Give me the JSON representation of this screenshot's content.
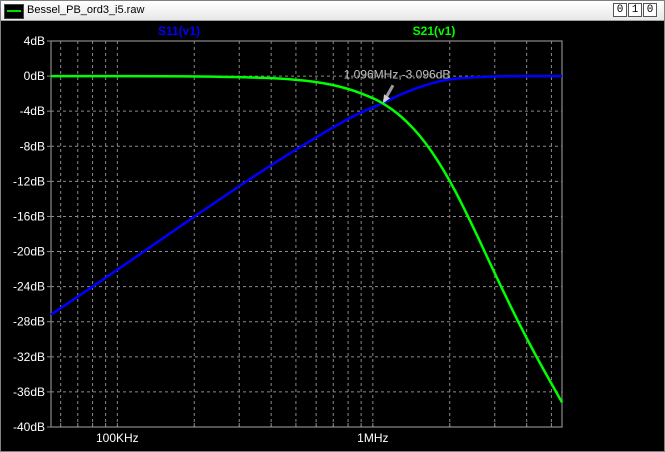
{
  "window": {
    "title": "Bessel_PB_ord3_i5.raw",
    "buttons": {
      "minimize": "0",
      "maximize": "1",
      "close": "0"
    }
  },
  "colors": {
    "background": "#000000",
    "grid": "#8a8a8a",
    "axis_text": "#ffffff",
    "s11": "#0000ff",
    "s21": "#00ff00",
    "cursor_text": "#c0c0c0"
  },
  "chart_data": {
    "type": "line",
    "x_scale": "log",
    "grid": true,
    "xlim": [
      55000,
      5500000
    ],
    "ylim": [
      -40,
      4
    ],
    "x_ticks": [
      {
        "value": 100000,
        "label": "100KHz"
      },
      {
        "value": 1000000,
        "label": "1MHz"
      }
    ],
    "y_ticks": [
      {
        "value": 4,
        "label": "4dB"
      },
      {
        "value": 0,
        "label": "0dB"
      },
      {
        "value": -4,
        "label": "-4dB"
      },
      {
        "value": -8,
        "label": "-8dB"
      },
      {
        "value": -12,
        "label": "-12dB"
      },
      {
        "value": -16,
        "label": "-16dB"
      },
      {
        "value": -20,
        "label": "-20dB"
      },
      {
        "value": -24,
        "label": "-24dB"
      },
      {
        "value": -28,
        "label": "-28dB"
      },
      {
        "value": -32,
        "label": "-32dB"
      },
      {
        "value": -36,
        "label": "-36dB"
      },
      {
        "value": -40,
        "label": "-40dB"
      }
    ],
    "series": [
      {
        "name": "S11(v1)",
        "color": "#0000ff",
        "points": [
          [
            55000,
            -27.2
          ],
          [
            100000,
            -22.1
          ],
          [
            200000,
            -16.0
          ],
          [
            400000,
            -10.1
          ],
          [
            700000,
            -5.8
          ],
          [
            900000,
            -4.1
          ],
          [
            1096000,
            -3.096
          ],
          [
            1300000,
            -2.0
          ],
          [
            1600000,
            -1.0
          ],
          [
            2000000,
            -0.3
          ],
          [
            3000000,
            0.0
          ],
          [
            5500000,
            0.0
          ]
        ]
      },
      {
        "name": "S21(v1)",
        "color": "#00ff00",
        "points": [
          [
            55000,
            0.0
          ],
          [
            200000,
            0.0
          ],
          [
            400000,
            -0.2
          ],
          [
            600000,
            -0.6
          ],
          [
            800000,
            -1.4
          ],
          [
            1000000,
            -2.5
          ],
          [
            1096000,
            -3.096
          ],
          [
            1300000,
            -4.6
          ],
          [
            1600000,
            -7.4
          ],
          [
            2000000,
            -11.8
          ],
          [
            2500000,
            -17.5
          ],
          [
            3000000,
            -22.5
          ],
          [
            4000000,
            -30.0
          ],
          [
            5500000,
            -37.2
          ]
        ]
      }
    ],
    "annotation": {
      "x": 1096000,
      "y": -3.096,
      "text": "1.096MHz,-3.096dB"
    }
  }
}
